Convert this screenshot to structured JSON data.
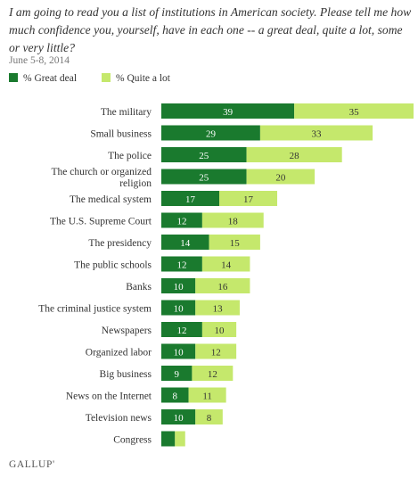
{
  "question": "I am going to read you a list of institutions in American society. Please tell me how much confidence you, yourself, have in each one -- a great deal, quite a lot, some or very little?",
  "date": "June 5-8, 2014",
  "logo": "GALLUP'",
  "colors": {
    "great_deal": "#1a7a2e",
    "quite_a_lot": "#c5e86c",
    "label_dark_bar": "#ffffff",
    "label_light_bar": "#333333"
  },
  "chart_data": {
    "type": "bar",
    "orientation": "horizontal",
    "stacked": true,
    "categories": [
      "The military",
      "Small business",
      "The police",
      "The church or organized religion",
      "The medical system",
      "The U.S. Supreme Court",
      "The presidency",
      "The public schools",
      "Banks",
      "The criminal justice system",
      "Newspapers",
      "Organized labor",
      "Big business",
      "News on the Internet",
      "Television news",
      "Congress"
    ],
    "category_lines": [
      [
        "The military"
      ],
      [
        "Small business"
      ],
      [
        "The police"
      ],
      [
        "The church or organized",
        "religion"
      ],
      [
        "The medical system"
      ],
      [
        "The U.S. Supreme Court"
      ],
      [
        "The presidency"
      ],
      [
        "The public schools"
      ],
      [
        "Banks"
      ],
      [
        "The criminal justice system"
      ],
      [
        "Newspapers"
      ],
      [
        "Organized labor"
      ],
      [
        "Big business"
      ],
      [
        "News on the Internet"
      ],
      [
        "Television news"
      ],
      [
        "Congress"
      ]
    ],
    "series": [
      {
        "name": "% Great deal",
        "values": [
          39,
          29,
          25,
          25,
          17,
          12,
          14,
          12,
          10,
          10,
          12,
          10,
          9,
          8,
          10,
          4
        ]
      },
      {
        "name": "% Quite a lot",
        "values": [
          35,
          33,
          28,
          20,
          17,
          18,
          15,
          14,
          16,
          13,
          10,
          12,
          12,
          11,
          8,
          3
        ]
      }
    ],
    "value_labels": [
      [
        "39",
        "35"
      ],
      [
        "29",
        "33"
      ],
      [
        "25",
        "28"
      ],
      [
        "25",
        "20"
      ],
      [
        "17",
        "17"
      ],
      [
        "12",
        "18"
      ],
      [
        "14",
        "15"
      ],
      [
        "12",
        "14"
      ],
      [
        "10",
        "16"
      ],
      [
        "10",
        "13"
      ],
      [
        "12",
        "10"
      ],
      [
        "10",
        "12"
      ],
      [
        "9",
        "12"
      ],
      [
        "8",
        "11"
      ],
      [
        "10",
        "8"
      ],
      [
        "",
        ""
      ]
    ],
    "xlim": [
      0,
      74
    ],
    "legend": "top-left",
    "grid": false
  }
}
